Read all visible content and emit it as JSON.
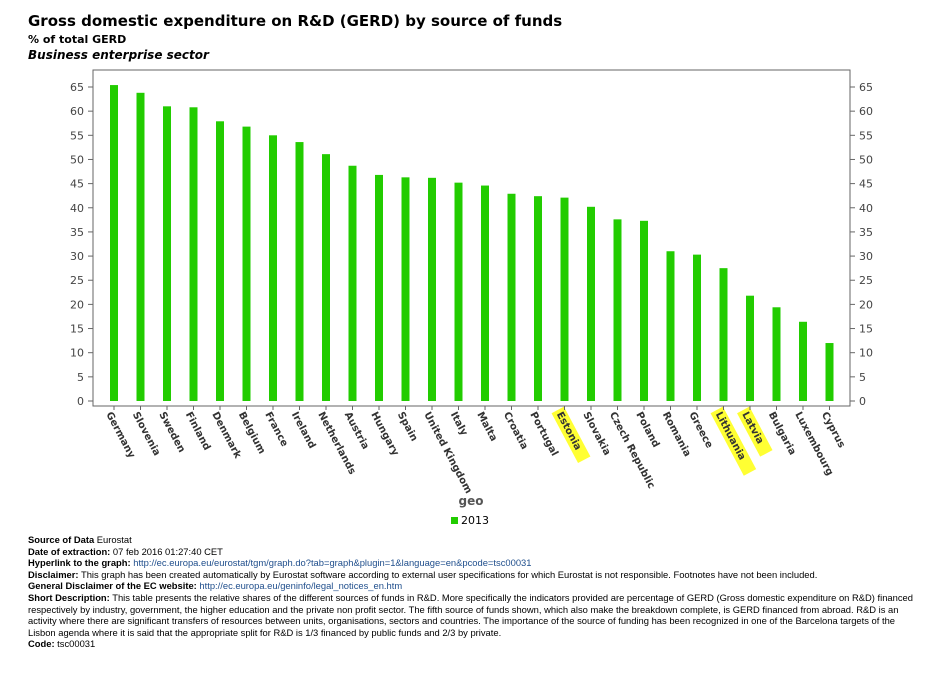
{
  "header": {
    "title": "Gross domestic expenditure on R&D (GERD) by source of funds",
    "unit": "% of total GERD",
    "sector": "Business enterprise sector"
  },
  "colors": {
    "bar": "#22cc00",
    "highlight": "#ffff33",
    "axis": "#666666"
  },
  "chart_data": {
    "type": "bar",
    "categories": [
      "Germany",
      "Slovenia",
      "Sweden",
      "Finland",
      "Denmark",
      "Belgium",
      "France",
      "Ireland",
      "Netherlands",
      "Austria",
      "Hungary",
      "Spain",
      "United Kingdom",
      "Italy",
      "Malta",
      "Croatia",
      "Portugal",
      "Estonia",
      "Slovakia",
      "Czech Republic",
      "Poland",
      "Romania",
      "Greece",
      "Lithuania",
      "Latvia",
      "Bulgaria",
      "Luxembourg",
      "Cyprus"
    ],
    "series": [
      {
        "name": "2013",
        "values": [
          65.4,
          63.8,
          61.0,
          60.8,
          57.9,
          56.8,
          55.0,
          53.6,
          51.1,
          48.7,
          46.8,
          46.3,
          46.2,
          45.2,
          44.6,
          42.9,
          42.4,
          42.1,
          40.2,
          37.6,
          37.3,
          31.0,
          30.3,
          27.5,
          21.8,
          19.4,
          16.4,
          12.0
        ]
      }
    ],
    "highlighted_categories": [
      "Estonia",
      "Lithuania",
      "Latvia"
    ],
    "xlabel": "geo",
    "ylabel": "",
    "ylim": [
      0,
      65
    ],
    "yticks": [
      0,
      5,
      10,
      15,
      20,
      25,
      30,
      35,
      40,
      45,
      50,
      55,
      60,
      65
    ],
    "grid": false,
    "legend": "bottom"
  },
  "footer": {
    "source_label": "Source of Data",
    "source_value": "Eurostat",
    "date_label": "Date of extraction:",
    "date_value": "07 feb 2016 01:27:40 CET",
    "hyperlink_label": "Hyperlink to the graph:",
    "hyperlink_value": "http://ec.europa.eu/eurostat/tgm/graph.do?tab=graph&plugin=1&language=en&pcode=tsc00031",
    "disclaimer_label": "Disclaimer:",
    "disclaimer_value": "This graph has been created automatically by Eurostat software according to external user specifications for which Eurostat is not responsible. Footnotes have not been included.",
    "general_label": "General Disclaimer of the EC website:",
    "general_value": "http://ec.europa.eu/geninfo/legal_notices_en.htm",
    "short_label": "Short Description:",
    "short_value": "This table presents the relative shares of the different sources of funds in R&D. More specifically the indicators provided are percentage of GERD (Gross domestic expenditure on R&D) financed respectively by industry, government, the higher education and the private non profit sector. The fifth source of funds shown, which also make the breakdown complete, is GERD financed from abroad. R&D is an activity where there are significant transfers of resources between units, organisations, sectors and countries. The importance of the source of funding has been recognized in one of the Barcelona targets of the Lisbon agenda where it is said that the appropriate split for R&D is 1/3 financed by public funds and 2/3 by private.",
    "code_label": "Code:",
    "code_value": "tsc00031"
  }
}
